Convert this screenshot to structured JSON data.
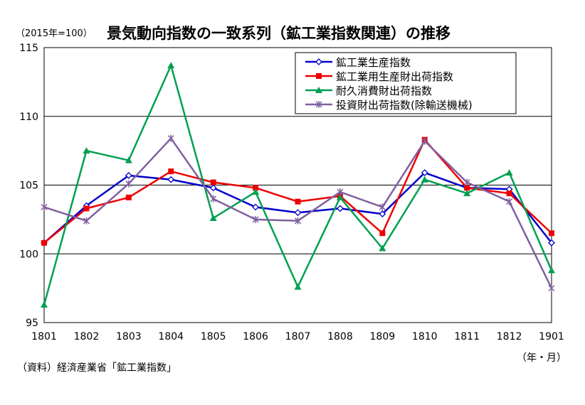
{
  "header": {
    "unit_note": "（2015年=100）",
    "title": "景気動向指数の一致系列（鉱工業指数関連）の推移"
  },
  "footer": {
    "source": "（資料）経済産業省「鉱工業指数」",
    "x_unit": "（年・月）"
  },
  "chart_data": {
    "type": "line",
    "title": "景気動向指数の一致系列（鉱工業指数関連）の推移",
    "xlabel": "（年・月）",
    "ylabel": "（2015年=100）",
    "ylim": [
      95,
      115
    ],
    "yticks": [
      "95",
      "100",
      "105",
      "110",
      "115"
    ],
    "categories": [
      "1801",
      "1802",
      "1803",
      "1804",
      "1805",
      "1806",
      "1807",
      "1808",
      "1809",
      "1810",
      "1811",
      "1812",
      "1901"
    ],
    "grid": "horizontal",
    "legend_position": "top-right",
    "series": [
      {
        "name": "鉱工業生産指数",
        "color": "#0000cc",
        "marker": "diamond-open",
        "values": [
          100.8,
          103.5,
          105.7,
          105.4,
          104.8,
          103.4,
          103.0,
          103.3,
          102.9,
          105.9,
          104.8,
          104.7,
          100.8
        ]
      },
      {
        "name": "鉱工業用生産財出荷指数",
        "color": "#ee0000",
        "marker": "square",
        "values": [
          100.8,
          103.3,
          104.1,
          106.0,
          105.2,
          104.8,
          103.8,
          104.2,
          101.5,
          108.3,
          104.8,
          104.4,
          101.5
        ]
      },
      {
        "name": "耐久消費財出荷指数",
        "color": "#00a050",
        "marker": "triangle",
        "values": [
          96.3,
          107.5,
          106.8,
          113.7,
          102.6,
          104.5,
          97.6,
          104.1,
          100.4,
          105.4,
          104.4,
          105.9,
          98.8
        ]
      },
      {
        "name": "投資財出荷指数(除輸送機械)",
        "color": "#8060a0",
        "marker": "star",
        "values": [
          103.4,
          102.4,
          105.1,
          108.4,
          104.0,
          102.5,
          102.4,
          104.5,
          103.4,
          108.2,
          105.2,
          103.8,
          97.5
        ]
      }
    ]
  }
}
